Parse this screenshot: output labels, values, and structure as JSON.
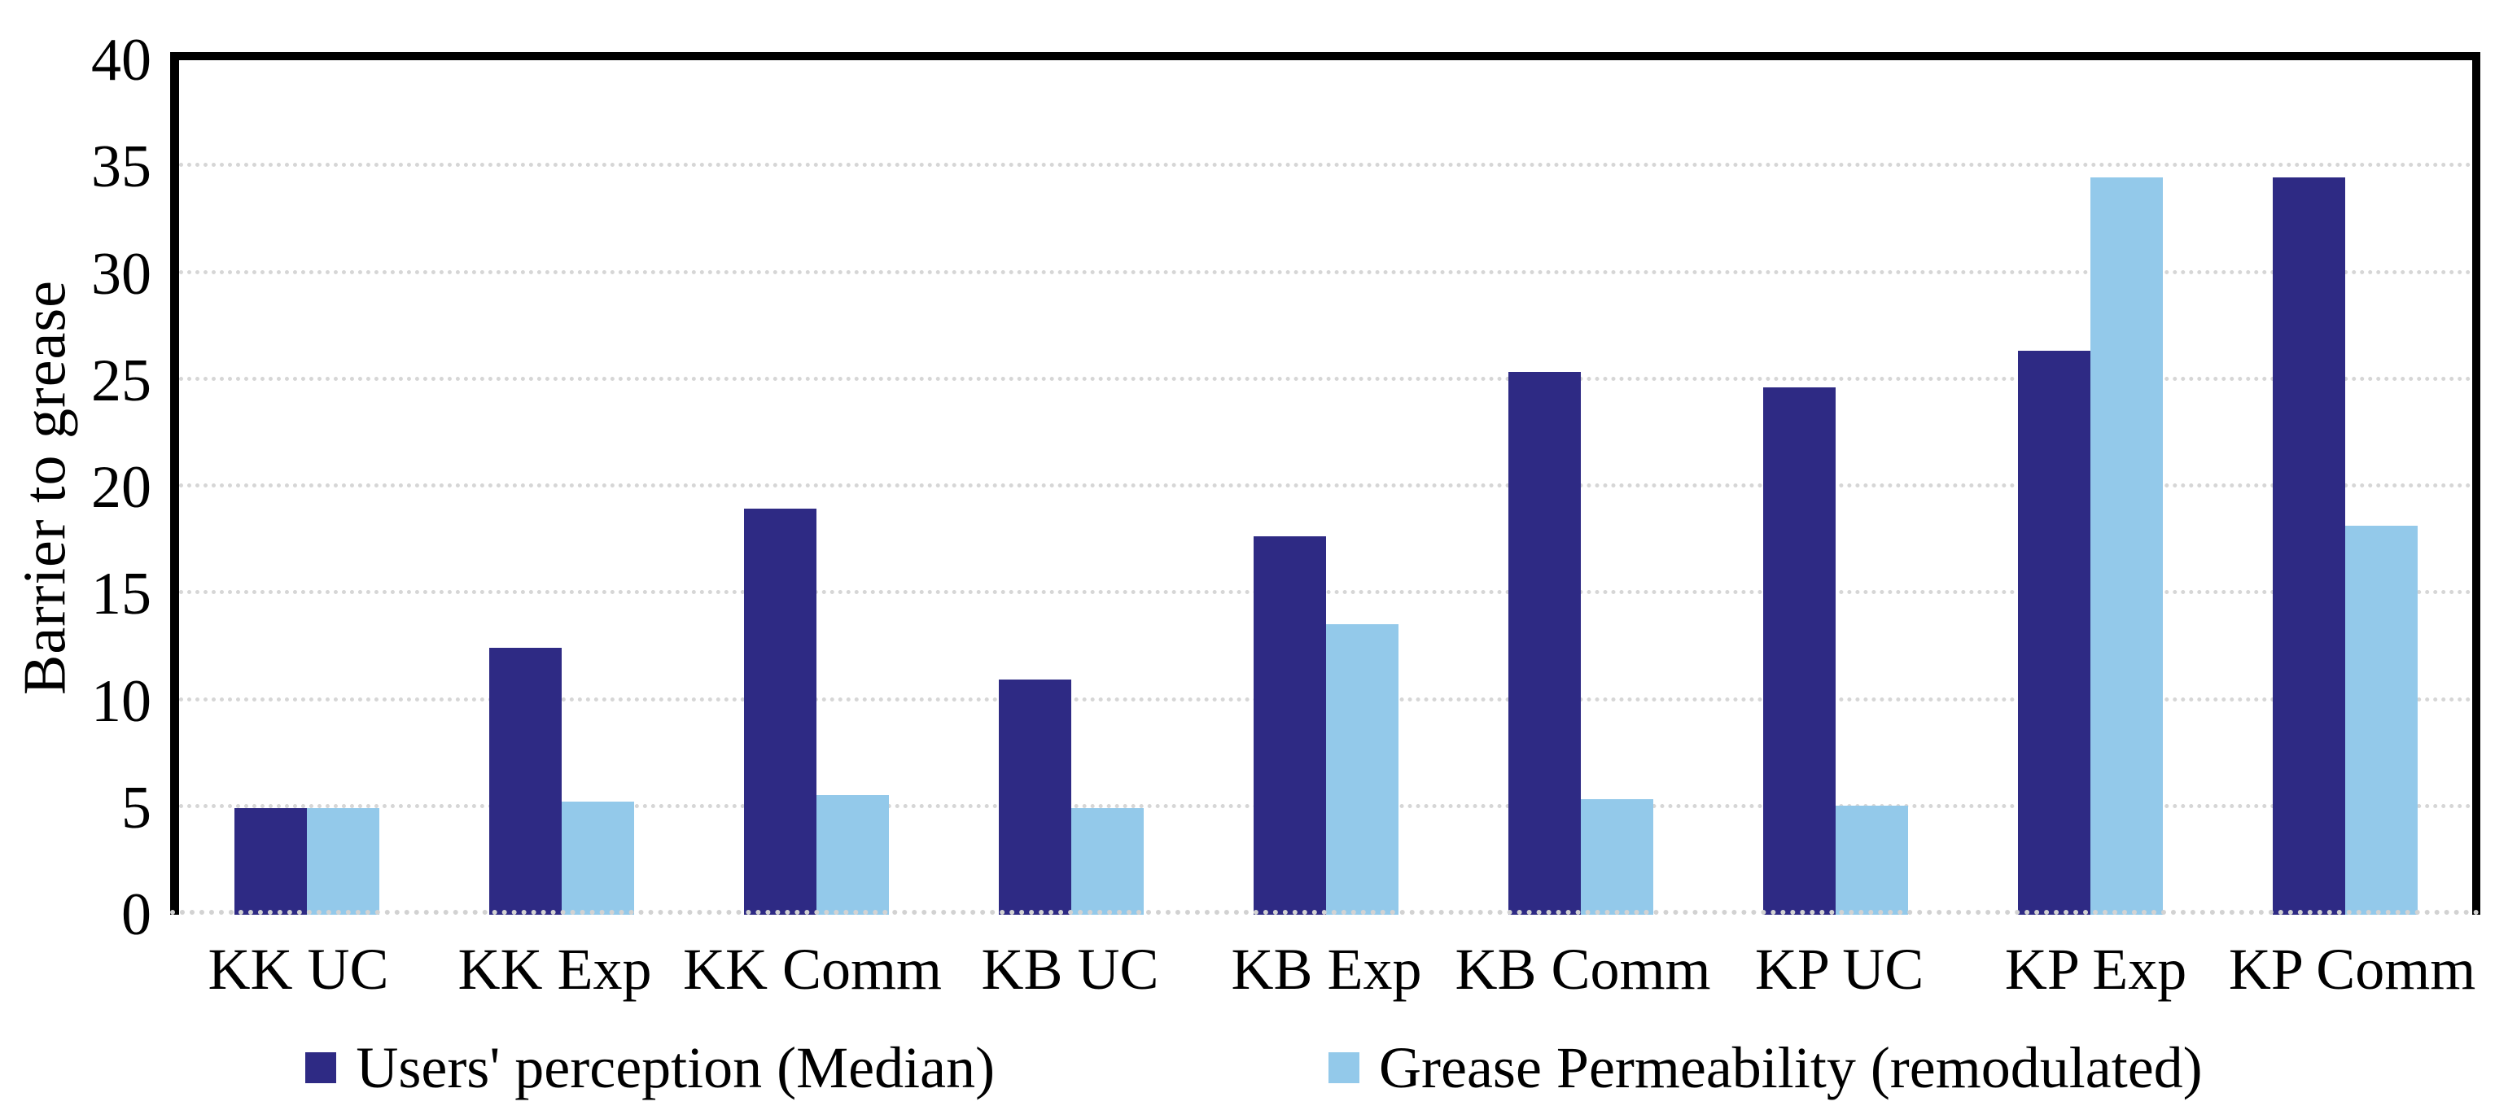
{
  "chart_data": {
    "type": "bar",
    "title": "",
    "xlabel": "",
    "ylabel": "Barrier to grease",
    "ylim": [
      0,
      40
    ],
    "ytick_step": 5,
    "grid": true,
    "legend_position": "bottom",
    "categories": [
      "KK UC",
      "KK Exp",
      "KK Comm",
      "KB UC",
      "KB Exp",
      "KB Comm",
      "KP UC",
      "KP Exp",
      "KP Comm"
    ],
    "series": [
      {
        "name": "Users' perception (Median)",
        "color": "#2e2a84",
        "values": [
          5.0,
          12.5,
          19.0,
          11.0,
          17.7,
          25.4,
          24.7,
          26.4,
          34.5
        ]
      },
      {
        "name": "Grease Permeability (remodulated)",
        "color": "#93c9ea",
        "values": [
          5.0,
          5.3,
          5.6,
          5.0,
          13.6,
          5.4,
          5.1,
          34.5,
          18.2
        ]
      }
    ]
  },
  "axes": {
    "y_ticks": [
      "0",
      "5",
      "10",
      "15",
      "20",
      "25",
      "30",
      "35",
      "40"
    ]
  },
  "colors": {
    "series_dark": "#2e2a84",
    "series_light": "#93c9ea",
    "gridline": "#d6d6d6",
    "axis": "#000000",
    "text": "#000000",
    "background": "#ffffff"
  }
}
